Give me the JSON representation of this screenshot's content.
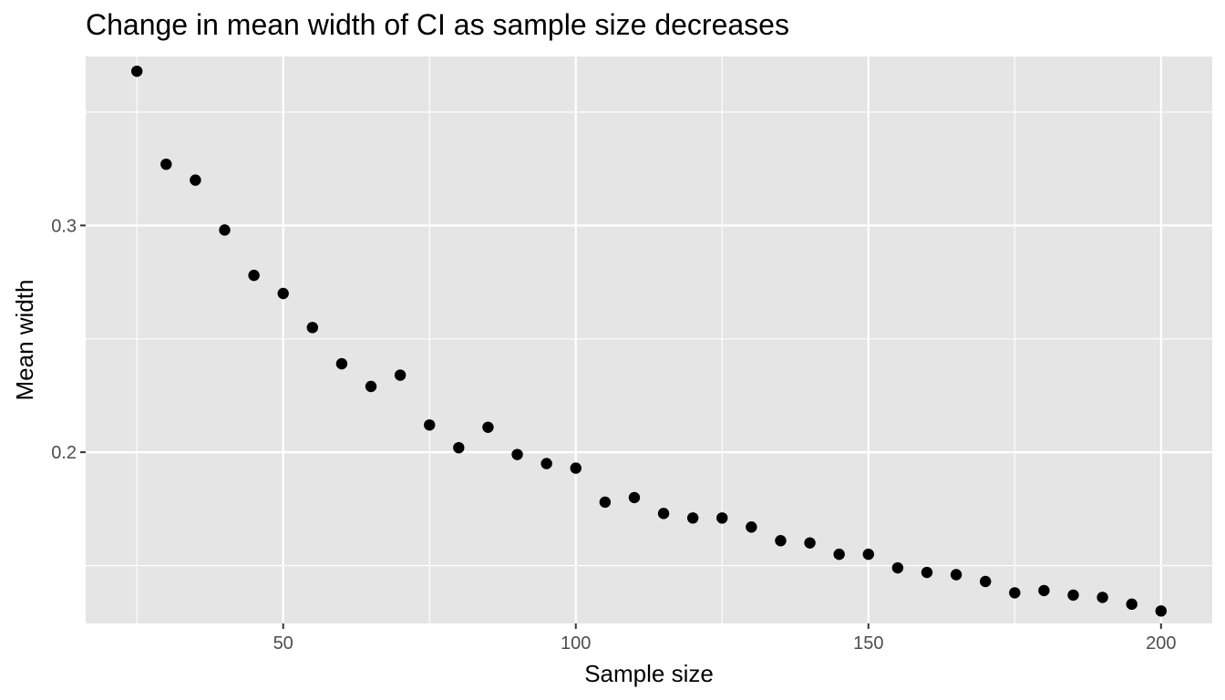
{
  "chart_data": {
    "type": "scatter",
    "title": "Change in mean width of CI as sample size decreases",
    "xlabel": "Sample size",
    "ylabel": "Mean width",
    "xlim": [
      16.25,
      208.75
    ],
    "ylim": [
      0.1245,
      0.3745
    ],
    "x_major_ticks": [
      50,
      100,
      150,
      200
    ],
    "x_minor_ticks": [
      25,
      75,
      125,
      175
    ],
    "y_major_ticks": [
      0.2,
      0.3
    ],
    "y_minor_ticks": [
      0.15,
      0.25,
      0.35
    ],
    "x_tick_labels": [
      "50",
      "100",
      "150",
      "200"
    ],
    "y_tick_labels": [
      "0.2",
      "0.3"
    ],
    "grid": true,
    "point_color": "#000000",
    "panel_color": "#e5e5e5",
    "points": [
      {
        "x": 25,
        "y": 0.368
      },
      {
        "x": 30,
        "y": 0.327
      },
      {
        "x": 35,
        "y": 0.32
      },
      {
        "x": 40,
        "y": 0.298
      },
      {
        "x": 45,
        "y": 0.278
      },
      {
        "x": 50,
        "y": 0.27
      },
      {
        "x": 55,
        "y": 0.255
      },
      {
        "x": 60,
        "y": 0.239
      },
      {
        "x": 65,
        "y": 0.229
      },
      {
        "x": 70,
        "y": 0.234
      },
      {
        "x": 75,
        "y": 0.212
      },
      {
        "x": 80,
        "y": 0.202
      },
      {
        "x": 85,
        "y": 0.211
      },
      {
        "x": 90,
        "y": 0.199
      },
      {
        "x": 95,
        "y": 0.195
      },
      {
        "x": 100,
        "y": 0.193
      },
      {
        "x": 105,
        "y": 0.178
      },
      {
        "x": 110,
        "y": 0.18
      },
      {
        "x": 115,
        "y": 0.173
      },
      {
        "x": 120,
        "y": 0.171
      },
      {
        "x": 125,
        "y": 0.171
      },
      {
        "x": 130,
        "y": 0.167
      },
      {
        "x": 135,
        "y": 0.161
      },
      {
        "x": 140,
        "y": 0.16
      },
      {
        "x": 145,
        "y": 0.155
      },
      {
        "x": 150,
        "y": 0.155
      },
      {
        "x": 155,
        "y": 0.149
      },
      {
        "x": 160,
        "y": 0.147
      },
      {
        "x": 165,
        "y": 0.146
      },
      {
        "x": 170,
        "y": 0.143
      },
      {
        "x": 175,
        "y": 0.138
      },
      {
        "x": 180,
        "y": 0.139
      },
      {
        "x": 185,
        "y": 0.137
      },
      {
        "x": 190,
        "y": 0.136
      },
      {
        "x": 195,
        "y": 0.133
      },
      {
        "x": 200,
        "y": 0.13
      }
    ]
  }
}
